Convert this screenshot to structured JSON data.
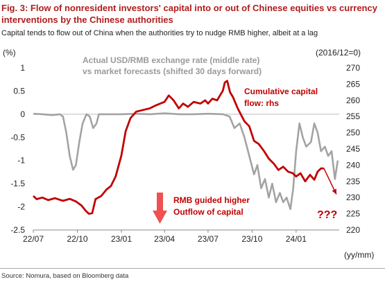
{
  "title": "Fig. 3: Flow of nonresident investors' capital into or out of Chinese equities vs currency interventions by the Chinese authorities",
  "subtitle": "Capital tends to flow out of China when the authorities try to nudge RMB higher, albeit at a lag",
  "source": "Source: Nomura, based on Bloomberg data",
  "chart_data": {
    "type": "line",
    "left_axis_unit": "(%)",
    "right_axis_unit": "(2016/12=0)",
    "x_unit": "(yy/mm)",
    "x_tick_labels": [
      "22/07",
      "22/10",
      "23/01",
      "23/04",
      "23/07",
      "23/10",
      "24/01"
    ],
    "y_left_ticks": [
      "1",
      "0.5",
      "0",
      "-0.5",
      "-1",
      "-1.5",
      "-2",
      "-2.5"
    ],
    "y_left_range": [
      -2.5,
      1
    ],
    "y_right_ticks": [
      "270",
      "265",
      "260",
      "255",
      "250",
      "245",
      "240",
      "235",
      "230",
      "225",
      "220"
    ],
    "y_right_range": [
      220,
      270
    ],
    "series_gray_label": "Actual USD/RMB exchange rate (middle rate) vs market forecasts (shifted 30 days forward)",
    "series_red_label": "Cumulative capital flow: rhs",
    "gray_color": "#a3a3a3",
    "red_color": "#c00000",
    "annotation_arrow_text": [
      "RMB guided higher",
      "Outflow of capital"
    ],
    "annotation_question": "???",
    "series": [
      {
        "name": "Actual USD/RMB exchange rate (middle rate) vs market forecasts (shifted 30 days forward)",
        "axis": "left",
        "points": [
          [
            "2022-07-01",
            0.01
          ],
          [
            "2022-07-20",
            0.0
          ],
          [
            "2022-08-10",
            -0.02
          ],
          [
            "2022-08-25",
            0.0
          ],
          [
            "2022-09-01",
            -0.05
          ],
          [
            "2022-09-08",
            -0.4
          ],
          [
            "2022-09-15",
            -0.9
          ],
          [
            "2022-09-22",
            -1.2
          ],
          [
            "2022-09-28",
            -1.1
          ],
          [
            "2022-10-05",
            -0.6
          ],
          [
            "2022-10-12",
            -0.2
          ],
          [
            "2022-10-20",
            0.0
          ],
          [
            "2022-10-27",
            -0.05
          ],
          [
            "2022-11-03",
            -0.3
          ],
          [
            "2022-11-10",
            -0.2
          ],
          [
            "2022-11-15",
            0.0
          ],
          [
            "2022-12-01",
            0.0
          ],
          [
            "2023-01-01",
            0.0
          ],
          [
            "2023-02-01",
            0.01
          ],
          [
            "2023-03-01",
            0.0
          ],
          [
            "2023-04-01",
            0.02
          ],
          [
            "2023-05-01",
            0.0
          ],
          [
            "2023-06-01",
            0.0
          ],
          [
            "2023-07-01",
            0.01
          ],
          [
            "2023-08-01",
            0.0
          ],
          [
            "2023-08-15",
            -0.05
          ],
          [
            "2023-08-25",
            -0.3
          ],
          [
            "2023-09-05",
            -0.2
          ],
          [
            "2023-09-15",
            -0.5
          ],
          [
            "2023-09-25",
            -0.9
          ],
          [
            "2023-10-05",
            -1.3
          ],
          [
            "2023-10-12",
            -1.1
          ],
          [
            "2023-10-20",
            -1.6
          ],
          [
            "2023-10-28",
            -1.4
          ],
          [
            "2023-11-05",
            -1.8
          ],
          [
            "2023-11-12",
            -1.5
          ],
          [
            "2023-11-20",
            -1.9
          ],
          [
            "2023-11-28",
            -1.7
          ],
          [
            "2023-12-05",
            -1.9
          ],
          [
            "2023-12-12",
            -1.8
          ],
          [
            "2023-12-20",
            -2.05
          ],
          [
            "2023-12-26",
            -1.6
          ],
          [
            "2024-01-01",
            -0.8
          ],
          [
            "2024-01-08",
            -0.2
          ],
          [
            "2024-01-15",
            -0.5
          ],
          [
            "2024-01-22",
            -0.7
          ],
          [
            "2024-02-01",
            -0.6
          ],
          [
            "2024-02-08",
            -0.2
          ],
          [
            "2024-02-15",
            -0.4
          ],
          [
            "2024-02-22",
            -0.8
          ],
          [
            "2024-03-01",
            -0.7
          ],
          [
            "2024-03-08",
            -0.9
          ],
          [
            "2024-03-15",
            -0.8
          ],
          [
            "2024-03-22",
            -1.4
          ],
          [
            "2024-03-28",
            -1.0
          ]
        ]
      },
      {
        "name": "Cumulative capital flow: rhs",
        "axis": "right",
        "points": [
          [
            "2022-07-01",
            230.5
          ],
          [
            "2022-07-08",
            229.5
          ],
          [
            "2022-07-20",
            230.0
          ],
          [
            "2022-08-01",
            229.2
          ],
          [
            "2022-08-15",
            229.8
          ],
          [
            "2022-09-01",
            229.0
          ],
          [
            "2022-09-15",
            229.6
          ],
          [
            "2022-09-28",
            228.8
          ],
          [
            "2022-10-10",
            227.5
          ],
          [
            "2022-10-18",
            226.0
          ],
          [
            "2022-10-25",
            225.0
          ],
          [
            "2022-11-01",
            225.2
          ],
          [
            "2022-11-08",
            229.5
          ],
          [
            "2022-11-20",
            230.5
          ],
          [
            "2022-12-01",
            232.5
          ],
          [
            "2022-12-10",
            233.5
          ],
          [
            "2022-12-20",
            236.5
          ],
          [
            "2023-01-01",
            243.0
          ],
          [
            "2023-01-10",
            250.5
          ],
          [
            "2023-01-20",
            254.5
          ],
          [
            "2023-02-01",
            256.5
          ],
          [
            "2023-02-15",
            257.0
          ],
          [
            "2023-03-01",
            257.5
          ],
          [
            "2023-03-15",
            258.5
          ],
          [
            "2023-04-01",
            259.5
          ],
          [
            "2023-04-10",
            261.5
          ],
          [
            "2023-04-20",
            260.0
          ],
          [
            "2023-05-01",
            257.5
          ],
          [
            "2023-05-10",
            259.0
          ],
          [
            "2023-05-20",
            258.0
          ],
          [
            "2023-06-01",
            259.5
          ],
          [
            "2023-06-15",
            259.0
          ],
          [
            "2023-06-25",
            260.0
          ],
          [
            "2023-07-01",
            259.0
          ],
          [
            "2023-07-10",
            260.5
          ],
          [
            "2023-07-20",
            260.0
          ],
          [
            "2023-08-01",
            263.0
          ],
          [
            "2023-08-05",
            265.5
          ],
          [
            "2023-08-10",
            266.0
          ],
          [
            "2023-08-16",
            262.5
          ],
          [
            "2023-08-22",
            261.0
          ],
          [
            "2023-09-01",
            257.5
          ],
          [
            "2023-09-15",
            253.5
          ],
          [
            "2023-09-25",
            252.0
          ],
          [
            "2023-10-05",
            247.5
          ],
          [
            "2023-10-15",
            246.5
          ],
          [
            "2023-10-25",
            244.5
          ],
          [
            "2023-11-05",
            242.0
          ],
          [
            "2023-11-15",
            240.5
          ],
          [
            "2023-11-25",
            238.5
          ],
          [
            "2023-12-05",
            239.5
          ],
          [
            "2023-12-15",
            238.0
          ],
          [
            "2023-12-25",
            237.5
          ],
          [
            "2024-01-01",
            236.5
          ],
          [
            "2024-01-10",
            237.5
          ],
          [
            "2024-01-20",
            235.0
          ],
          [
            "2024-01-30",
            237.0
          ],
          [
            "2024-02-08",
            235.5
          ],
          [
            "2024-02-15",
            238.0
          ],
          [
            "2024-02-22",
            239.0
          ],
          [
            "2024-02-28",
            239.0
          ]
        ]
      }
    ],
    "projection": {
      "from": [
        "2024-02-28",
        239.0
      ],
      "to": [
        "2024-03-25",
        231.0
      ]
    }
  }
}
